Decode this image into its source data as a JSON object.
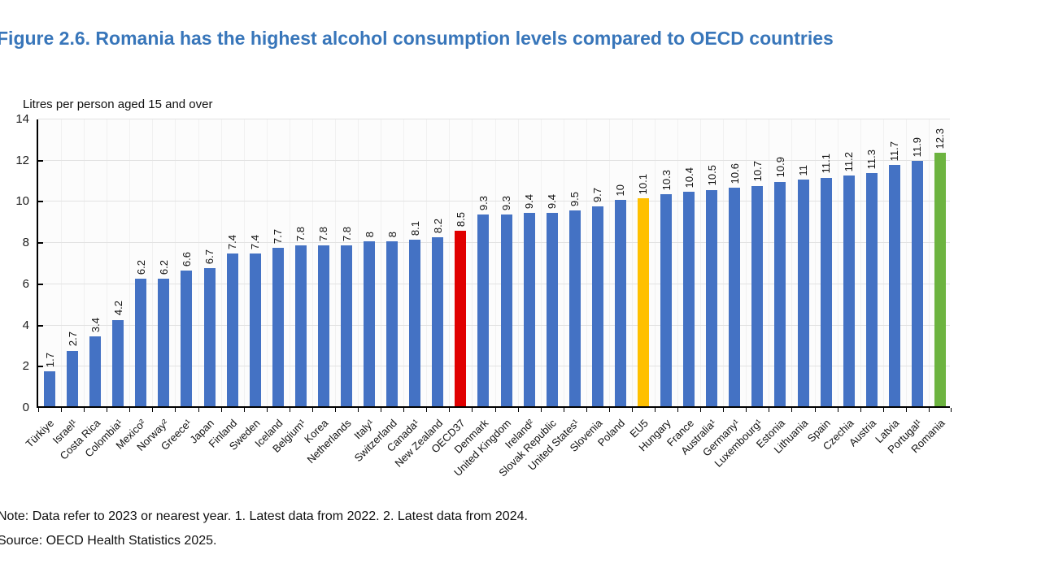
{
  "header": {
    "title": "Figure 2.6. Romania has the highest alcohol consumption levels compared to OECD countries"
  },
  "footer": {
    "note": "Note: Data refer to 2023 or nearest year. 1. Latest data from 2022. 2. Latest data from 2024.",
    "source": "Source: OECD Health Statistics 2025."
  },
  "chart_data": {
    "type": "bar",
    "title": "Figure 2.6. Romania has the highest alcohol consumption levels compared to OECD countries",
    "ylabel": "Litres per person aged 15 and over",
    "xlabel": "",
    "ylim": [
      0,
      14
    ],
    "ytick_step": 2,
    "grid": true,
    "legend": "none",
    "categories": [
      "Türkiye",
      "Israel¹",
      "Costa Rica",
      "Colombia¹",
      "Mexico²",
      "Norway²",
      "Greece¹",
      "Japan",
      "Finland",
      "Sweden",
      "Iceland",
      "Belgium¹",
      "Korea",
      "Netherlands",
      "Italy¹",
      "Switzerland",
      "Canada¹",
      "New Zealand",
      "OECD37",
      "Denmark",
      "United Kingdom",
      "Ireland²",
      "Slovak Republic",
      "United States¹",
      "Slovenia",
      "Poland",
      "EU5",
      "Hungary",
      "France",
      "Australia¹",
      "Germany¹",
      "Luxembourg¹",
      "Estonia",
      "Lithuania",
      "Spain",
      "Czechia",
      "Austria",
      "Latvia",
      "Portugal¹",
      "Romania"
    ],
    "values": [
      1.7,
      2.7,
      3.4,
      4.2,
      6.2,
      6.2,
      6.6,
      6.7,
      7.4,
      7.4,
      7.7,
      7.8,
      7.8,
      7.8,
      8,
      8,
      8.1,
      8.2,
      8.5,
      9.3,
      9.3,
      9.4,
      9.4,
      9.5,
      9.7,
      10,
      10.1,
      10.3,
      10.4,
      10.5,
      10.6,
      10.7,
      10.9,
      11,
      11.1,
      11.2,
      11.3,
      11.7,
      11.9,
      12.3
    ],
    "bar_color_default": "#4472C4",
    "highlight_colors": {
      "OECD37": "#E00000",
      "EU5": "#FFC000",
      "Romania": "#6CB33F"
    },
    "title_color": "#3876ba"
  }
}
